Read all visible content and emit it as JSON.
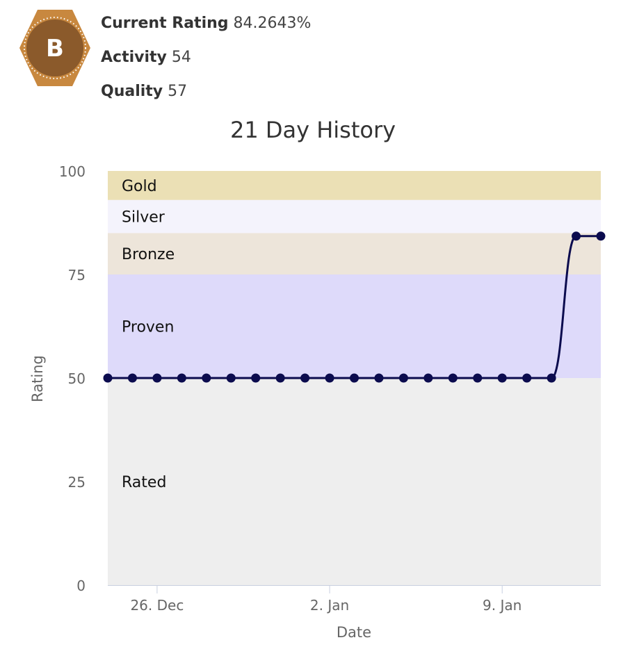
{
  "badge": {
    "letter": "B",
    "outer_color": "#C8883F",
    "inner_color": "#8B5A2B"
  },
  "stats": [
    {
      "label": "Current Rating",
      "value": "84.2643%"
    },
    {
      "label": "Activity",
      "value": "54"
    },
    {
      "label": "Quality",
      "value": "57"
    }
  ],
  "chart_data": {
    "type": "line",
    "title": "21 Day History",
    "xlabel": "Date",
    "ylabel": "Rating",
    "ylim": [
      0,
      100
    ],
    "yticks": [
      0,
      25,
      50,
      75,
      100
    ],
    "x_tick_labels": [
      {
        "label": "26. Dec",
        "date": "2023-12-26"
      },
      {
        "label": "2. Jan",
        "date": "2024-01-02"
      },
      {
        "label": "9. Jan",
        "date": "2024-01-09"
      }
    ],
    "bands": [
      {
        "name": "Rated",
        "from": 0,
        "to": 50,
        "color": "#EEEEEE"
      },
      {
        "name": "Proven",
        "from": 50,
        "to": 75,
        "color": "#DEDAFA"
      },
      {
        "name": "Bronze",
        "from": 75,
        "to": 85,
        "color": "#EDE5DA"
      },
      {
        "name": "Silver",
        "from": 85,
        "to": 93,
        "color": "#F4F3FC"
      },
      {
        "name": "Gold",
        "from": 93,
        "to": 100,
        "color": "#EBE0B5"
      }
    ],
    "series": [
      {
        "color": "#0B0B4E",
        "points": [
          {
            "x": "2023-12-24",
            "y": 50
          },
          {
            "x": "2023-12-25",
            "y": 50
          },
          {
            "x": "2023-12-26",
            "y": 50
          },
          {
            "x": "2023-12-27",
            "y": 50
          },
          {
            "x": "2023-12-28",
            "y": 50
          },
          {
            "x": "2023-12-29",
            "y": 50
          },
          {
            "x": "2023-12-30",
            "y": 50
          },
          {
            "x": "2023-12-31",
            "y": 50
          },
          {
            "x": "2024-01-01",
            "y": 50
          },
          {
            "x": "2024-01-02",
            "y": 50
          },
          {
            "x": "2024-01-03",
            "y": 50
          },
          {
            "x": "2024-01-04",
            "y": 50
          },
          {
            "x": "2024-01-05",
            "y": 50
          },
          {
            "x": "2024-01-06",
            "y": 50
          },
          {
            "x": "2024-01-07",
            "y": 50
          },
          {
            "x": "2024-01-08",
            "y": 50
          },
          {
            "x": "2024-01-09",
            "y": 50
          },
          {
            "x": "2024-01-10",
            "y": 50
          },
          {
            "x": "2024-01-11",
            "y": 50
          },
          {
            "x": "2024-01-12",
            "y": 84.2643
          },
          {
            "x": "2024-01-13",
            "y": 84.2643
          }
        ]
      }
    ]
  }
}
